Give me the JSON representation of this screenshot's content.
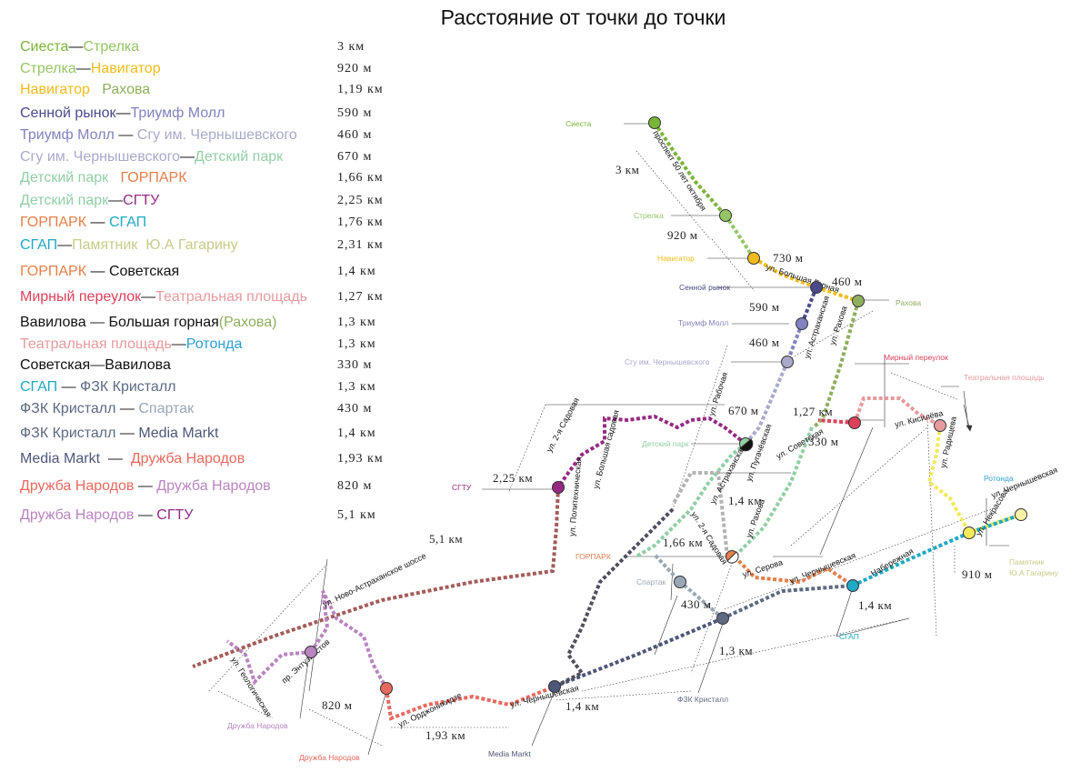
{
  "title": "Расстояние от точки до точки",
  "colors": {
    "siesta": "#7ab53a",
    "strelka": "#95c565",
    "navigator": "#f0bc1a",
    "rakhova": "#8fae5f",
    "sennoy": "#4b4a8c",
    "triumf": "#8282c0",
    "sgu": "#a9a9cc",
    "detsky": "#92cfa5",
    "gorpark": "#e57f4a",
    "sgtu": "#962a83",
    "sgap": "#1ea9c4",
    "gagarin": "#c9cb87",
    "mirny": "#dc415a",
    "teatr": "#e89a9e",
    "rotonda": "#2c9fd4",
    "sovetskaya": "#111111",
    "fzk": "#5e6a82",
    "spartak": "#9aa7b7",
    "media": "#4e5778",
    "druzhba1": "#e8695e",
    "druzhba2": "#b984c0"
  },
  "legend": [
    {
      "parts": [
        {
          "text": "Сиеста",
          "color": "#7ab53a"
        },
        {
          "text": "—",
          "color": "#222"
        },
        {
          "text": "Стрелка",
          "color": "#95c565"
        }
      ],
      "distance": "3 км"
    },
    {
      "parts": [
        {
          "text": "Стрелка",
          "color": "#95c565"
        },
        {
          "text": "—",
          "color": "#222"
        },
        {
          "text": "Навигатор",
          "color": "#f0bc1a"
        }
      ],
      "distance": "920 м"
    },
    {
      "parts": [
        {
          "text": "Навигатор",
          "color": "#f0bc1a"
        },
        {
          "text": "   ",
          "color": "#222"
        },
        {
          "text": "Рахова",
          "color": "#8fae5f"
        }
      ],
      "distance": "1,19 км"
    },
    {
      "parts": [
        {
          "text": "Сенной рынок",
          "color": "#4b4a8c"
        },
        {
          "text": "—",
          "color": "#222"
        },
        {
          "text": "Триумф Молл",
          "color": "#8282c0"
        }
      ],
      "distance": "590 м"
    },
    {
      "parts": [
        {
          "text": "Триумф Молл",
          "color": "#8282c0"
        },
        {
          "text": " — ",
          "color": "#222"
        },
        {
          "text": "Сгу им. Чернышевского",
          "color": "#a9a9cc"
        }
      ],
      "distance": "460 м"
    },
    {
      "parts": [
        {
          "text": "Сгу им. Чернышевского",
          "color": "#a9a9cc"
        },
        {
          "text": "—",
          "color": "#222"
        },
        {
          "text": "Детский парк",
          "color": "#92cfa5"
        }
      ],
      "distance": "670 м"
    },
    {
      "parts": [
        {
          "text": "Детский парк",
          "color": "#92cfa5"
        },
        {
          "text": "   ",
          "color": "#222"
        },
        {
          "text": "ГОРПАРК",
          "color": "#e57f4a"
        }
      ],
      "distance": "1,66 км"
    },
    {
      "parts": [
        {
          "text": "Детский парк",
          "color": "#92cfa5"
        },
        {
          "text": "—",
          "color": "#222"
        },
        {
          "text": "СГТУ",
          "color": "#962a83"
        }
      ],
      "distance": "2,25 км"
    },
    {
      "parts": [
        {
          "text": "ГОРПАРК",
          "color": "#e57f4a"
        },
        {
          "text": " — ",
          "color": "#222"
        },
        {
          "text": "СГАП",
          "color": "#1ea9c4"
        }
      ],
      "distance": "1,76 км"
    },
    {
      "parts": [
        {
          "text": "СГАП",
          "color": "#1ea9c4"
        },
        {
          "text": "—",
          "color": "#222"
        },
        {
          "text": "Памятник  Ю.А Гагарину",
          "color": "#c9cb87"
        }
      ],
      "distance": "2,31 км"
    },
    {
      "parts": [
        {
          "text": "ГОРПАРК",
          "color": "#e57f4a"
        },
        {
          "text": " — ",
          "color": "#222"
        },
        {
          "text": "Советская",
          "color": "#111111"
        }
      ],
      "distance": "1,4 км"
    },
    {
      "parts": [
        {
          "text": "Мирный переулок",
          "color": "#dc415a"
        },
        {
          "text": "—",
          "color": "#222"
        },
        {
          "text": "Театральная площадь",
          "color": "#e89a9e"
        }
      ],
      "distance": "1,27 км"
    },
    {
      "parts": [
        {
          "text": "Вавилова",
          "color": "#111111"
        },
        {
          "text": " — ",
          "color": "#222"
        },
        {
          "text": "Большая горная",
          "color": "#111111"
        },
        {
          "text": "(Рахова)",
          "color": "#8fae5f"
        }
      ],
      "distance": "1,3 км"
    },
    {
      "parts": [
        {
          "text": "Театральная площадь",
          "color": "#e89a9e"
        },
        {
          "text": "—",
          "color": "#222"
        },
        {
          "text": "Ротонда",
          "color": "#2c9fd4"
        }
      ],
      "distance": "1,3 км"
    },
    {
      "parts": [
        {
          "text": "Советская",
          "color": "#111111"
        },
        {
          "text": "—",
          "color": "#222"
        },
        {
          "text": "Вавилова",
          "color": "#111111"
        }
      ],
      "distance": "330 м"
    },
    {
      "parts": [
        {
          "text": "СГАП",
          "color": "#1ea9c4"
        },
        {
          "text": " — ",
          "color": "#222"
        },
        {
          "text": "ФЗК Кристалл",
          "color": "#5e6a82"
        }
      ],
      "distance": "1,3 км"
    },
    {
      "parts": [
        {
          "text": "ФЗК Кристалл",
          "color": "#5e6a82"
        },
        {
          "text": " — ",
          "color": "#222"
        },
        {
          "text": "Спартак",
          "color": "#9aa7b7"
        }
      ],
      "distance": "430 м"
    },
    {
      "parts": [
        {
          "text": "ФЗК Кристалл",
          "color": "#5e6a82"
        },
        {
          "text": " — ",
          "color": "#222"
        },
        {
          "text": "Media Markt",
          "color": "#4e5778"
        }
      ],
      "distance": "1,4 км"
    },
    {
      "parts": [
        {
          "text": "Media Markt",
          "color": "#4e5778"
        },
        {
          "text": "  —  ",
          "color": "#222"
        },
        {
          "text": "Дружба Народов",
          "color": "#e8695e"
        }
      ],
      "distance": "1,93 км"
    },
    {
      "parts": [
        {
          "text": "Дружба Народов",
          "color": "#e8695e"
        },
        {
          "text": " — ",
          "color": "#222"
        },
        {
          "text": "Дружба Народов",
          "color": "#b984c0"
        }
      ],
      "distance": "820 м"
    },
    {
      "parts": [
        {
          "text": "Дружба Народов",
          "color": "#b984c0"
        },
        {
          "text": " — ",
          "color": "#222"
        },
        {
          "text": "СГТУ",
          "color": "#962a83"
        }
      ],
      "distance": "5,1 км"
    }
  ],
  "stations": [
    {
      "label": "Сиеста",
      "color": "#7ab53a"
    },
    {
      "label": "Стрелка",
      "color": "#95c565"
    },
    {
      "label": "Навигатор",
      "color": "#f0bc1a"
    },
    {
      "label": "Рахова",
      "color": "#8fae5f"
    },
    {
      "label": "Сенной рынок",
      "color": "#4b4a8c"
    },
    {
      "label": "Триумф Молл",
      "color": "#8282c0"
    },
    {
      "label": "Сгу им. Чернышевского",
      "color": "#a9a9cc"
    },
    {
      "label": "Мирный переулок",
      "color": "#dc415a"
    },
    {
      "label": "Театральная площадь",
      "color": "#e89a9e"
    },
    {
      "label": "Детский парк",
      "color": "#92cfa5"
    },
    {
      "label": "СГТУ",
      "color": "#962a83"
    },
    {
      "label": "Ротонда",
      "color": "#2c9fd4"
    },
    {
      "label": "Памятник",
      "color": "#c9cb87"
    },
    {
      "label": "Ю.А Гагарину",
      "color": "#c9cb87"
    },
    {
      "label": "ГОРПАРК",
      "color": "#e57f4a"
    },
    {
      "label": "Спартак",
      "color": "#9aa7b7"
    },
    {
      "label": "СГАП",
      "color": "#1ea9c4"
    },
    {
      "label": "ФЗК Кристалл",
      "color": "#5e6a82"
    },
    {
      "label": "Media Markt",
      "color": "#4e5778"
    },
    {
      "label": "Дружба Народов",
      "color": "#b984c0"
    },
    {
      "label": "Дружба Народов",
      "color": "#e8695e"
    }
  ],
  "map_distances": [
    "3 км",
    "920 м",
    "730 м",
    "460 м",
    "590 м",
    "460 м",
    "670 м",
    "1,27 км",
    "330 м",
    "2,25 км",
    "1,4 км",
    "1,66 км",
    "5,1 км",
    "430 м",
    "1,3 км",
    "1,4 км",
    "910 м",
    "1,4 км",
    "820 м",
    "1,93 км"
  ],
  "streets": [
    "проспект 50 лет октября",
    "ул. Большая Горная",
    "ул. Рахова",
    "ул. Астраханская",
    "ул. Рабочая",
    "ул. Кисилёва",
    "ул. Радищева",
    "ул. Советская",
    "ул. Пугачёвская",
    "ул. 2-я Садовая",
    "ул. Большая садовая",
    "ул. Политехническая",
    "ул. Астраханская",
    "ул. Рахова",
    "ул. 2-я Садовая",
    "ул. Серова",
    "ул. Чернышевская",
    "ул. Чернышевская",
    "ул. Некрасова",
    "Набережная",
    "ул. Ново-Астраханское шоссе",
    "пр. Энтузиастов",
    "ул. Геологическая",
    "ул. Орджоникидзе",
    "ул. Чернышевская"
  ]
}
